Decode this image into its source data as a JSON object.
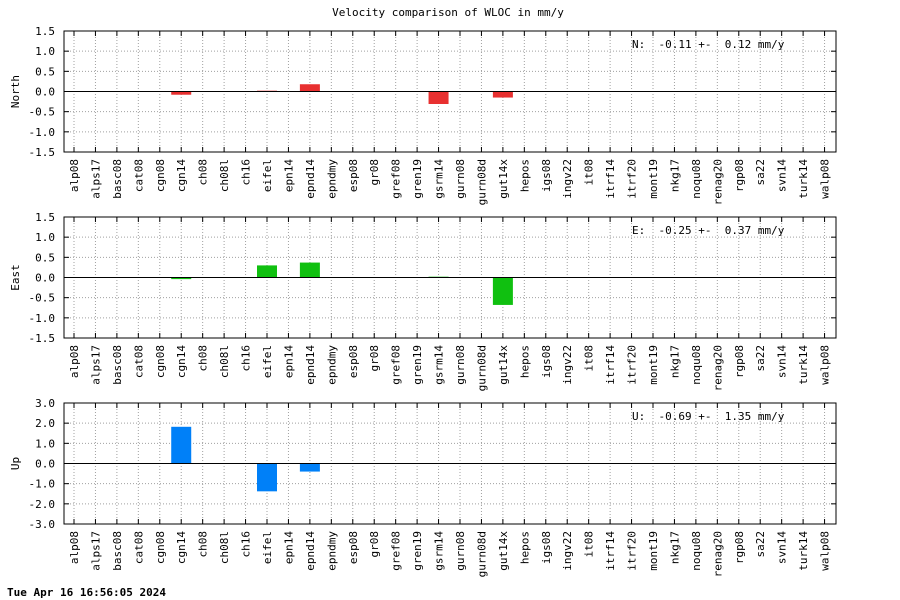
{
  "chart_data": {
    "type": "bar",
    "title": "Velocity comparison of WLOC in mm/y",
    "categories": [
      "alp08",
      "alps17",
      "basc08",
      "cat08",
      "cgn08",
      "cgn14",
      "ch08",
      "ch08l",
      "ch16",
      "eifel",
      "epn14",
      "epnd14",
      "epndmy",
      "esp08",
      "gr08",
      "gref08",
      "gren19",
      "gsrm14",
      "gurn08",
      "gurn08d",
      "gut14x",
      "hepos",
      "igs08",
      "ingv22",
      "it08",
      "itrf14",
      "itrf20",
      "mont19",
      "nkg17",
      "noqu08",
      "renag20",
      "rgp08",
      "sa22",
      "svn14",
      "turk14",
      "walp08"
    ],
    "grid": true,
    "panels": [
      {
        "ylabel": "North",
        "ylim": [
          -1.5,
          1.5
        ],
        "yticks": [
          "1.5",
          "1.0",
          "0.5",
          "0.0",
          "-0.5",
          "-1.0",
          "-1.5"
        ],
        "color": "#e83030",
        "stat": "N:  -0.11 +-  0.12 mm/y",
        "values": [
          0,
          0,
          0,
          0,
          0,
          -0.08,
          0,
          0,
          0,
          0.02,
          0,
          0.18,
          0,
          0,
          0,
          0,
          0,
          -0.31,
          0,
          0,
          -0.15,
          0,
          0,
          0,
          0,
          0,
          0,
          0,
          0,
          0,
          0,
          0,
          0,
          0,
          0,
          0
        ]
      },
      {
        "ylabel": "East",
        "ylim": [
          -1.5,
          1.5
        ],
        "yticks": [
          "1.5",
          "1.0",
          "0.5",
          "0.0",
          "-0.5",
          "-1.0",
          "-1.5"
        ],
        "color": "#10c010",
        "stat": "E:  -0.25 +-  0.37 mm/y",
        "values": [
          0,
          0,
          0,
          0,
          0,
          -0.04,
          0,
          0,
          0,
          0.3,
          0,
          0.37,
          0,
          0,
          0,
          0,
          0,
          0.02,
          0,
          0,
          -0.68,
          0,
          0,
          0,
          0,
          0,
          0,
          0,
          0,
          0,
          0,
          0,
          0,
          0,
          0,
          0
        ]
      },
      {
        "ylabel": "Up",
        "ylim": [
          -3.0,
          3.0
        ],
        "yticks": [
          "3.0",
          "2.0",
          "1.0",
          "0.0",
          "-1.0",
          "-2.0",
          "-3.0"
        ],
        "color": "#0080f8",
        "stat": "U:  -0.69 +-  1.35 mm/y",
        "values": [
          0,
          0,
          0,
          0,
          0,
          1.82,
          0,
          0,
          0,
          -1.38,
          0,
          -0.4,
          0,
          0,
          0,
          0,
          0,
          0,
          0,
          0,
          0,
          0,
          0,
          0,
          0,
          0,
          0,
          0,
          0,
          0,
          0,
          0,
          0,
          0,
          0,
          0
        ]
      }
    ]
  },
  "footer": "Tue Apr 16 16:56:05 2024"
}
